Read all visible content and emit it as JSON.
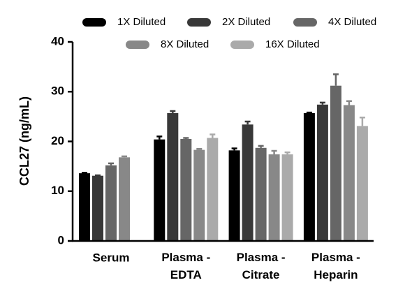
{
  "chart_data": {
    "type": "bar",
    "y_label": "CCL27 (ng/mL)",
    "categories": [
      "Serum",
      "Plasma - EDTA",
      "Plasma - Citrate",
      "Plasma - Heparin"
    ],
    "series": [
      {
        "name": "1X Diluted",
        "color": "#000000",
        "values": [
          13.6,
          20.4,
          18.2,
          25.7
        ],
        "errors": [
          0.1,
          0.6,
          0.4,
          0.1
        ]
      },
      {
        "name": "2X Diluted",
        "color": "#383838",
        "values": [
          13.1,
          25.7,
          23.4,
          27.4
        ],
        "errors": [
          0.1,
          0.4,
          0.6,
          0.4
        ]
      },
      {
        "name": "4X Diluted",
        "color": "#666666",
        "values": [
          15.2,
          20.5,
          18.7,
          31.2
        ],
        "errors": [
          0.4,
          0.2,
          0.4,
          2.3
        ]
      },
      {
        "name": "8X Diluted",
        "color": "#888888",
        "values": [
          16.8,
          18.3,
          17.4,
          27.3
        ],
        "errors": [
          0.2,
          0.2,
          0.7,
          0.8
        ]
      },
      {
        "name": "16X Diluted",
        "color": "#aaaaaa",
        "values": [
          null,
          20.7,
          17.4,
          23.1
        ],
        "errors": [
          null,
          0.7,
          0.4,
          1.7
        ]
      }
    ],
    "ylim": [
      0,
      40
    ],
    "yticks": [
      0,
      10,
      20,
      30,
      40
    ]
  }
}
